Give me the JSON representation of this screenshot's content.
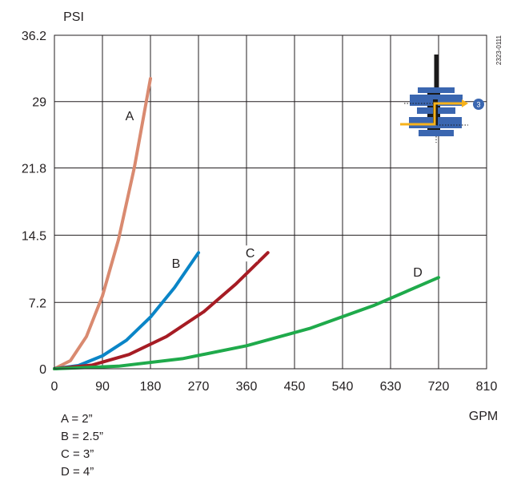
{
  "figure_code": "2323-0111",
  "inset_icon": {
    "name": "valve-flow-diagram-icon",
    "badge_label": "3",
    "colors": {
      "body": "#3a66b0",
      "stem": "#1a1a1a",
      "flow": "#f7b21b",
      "badge": "#3a66b0"
    }
  },
  "legend_notes": [
    "A = 2”",
    "B = 2.5”",
    "C = 3”",
    "D = 4”"
  ],
  "chart_data": {
    "type": "line",
    "title": "",
    "xlabel": "GPM",
    "ylabel": "PSI",
    "xlim": [
      0,
      810
    ],
    "ylim": [
      0,
      36.2
    ],
    "x_ticks": [
      0,
      90,
      180,
      270,
      360,
      450,
      540,
      630,
      720,
      810
    ],
    "x_tick_labels": [
      "0",
      "90",
      "180",
      "270",
      "360",
      "450",
      "540",
      "630",
      "720",
      "810"
    ],
    "y_ticks": [
      0,
      7.2,
      14.5,
      21.8,
      29,
      36.2
    ],
    "y_tick_labels": [
      "0",
      "7.2",
      "14.5",
      "21.8",
      "29",
      "36.2"
    ],
    "grid": true,
    "legend": "none",
    "series": [
      {
        "name": "A",
        "color": "#d98a70",
        "x": [
          0,
          30,
          60,
          90,
          120,
          150,
          180
        ],
        "y": [
          0,
          0.88,
          3.5,
          7.9,
          14.0,
          21.9,
          31.5
        ]
      },
      {
        "name": "B",
        "color": "#0a85c7",
        "x": [
          0,
          45,
          90,
          135,
          180,
          225,
          270
        ],
        "y": [
          0,
          0.35,
          1.4,
          3.1,
          5.6,
          8.8,
          12.6
        ]
      },
      {
        "name": "C",
        "color": "#a61c24",
        "x": [
          0,
          70,
          140,
          210,
          280,
          340,
          400
        ],
        "y": [
          0,
          0.39,
          1.55,
          3.5,
          6.2,
          9.2,
          12.6
        ]
      },
      {
        "name": "D",
        "color": "#1faa4b",
        "x": [
          0,
          120,
          240,
          360,
          480,
          600,
          720
        ],
        "y": [
          0,
          0.28,
          1.1,
          2.5,
          4.4,
          6.9,
          9.9
        ]
      }
    ]
  }
}
